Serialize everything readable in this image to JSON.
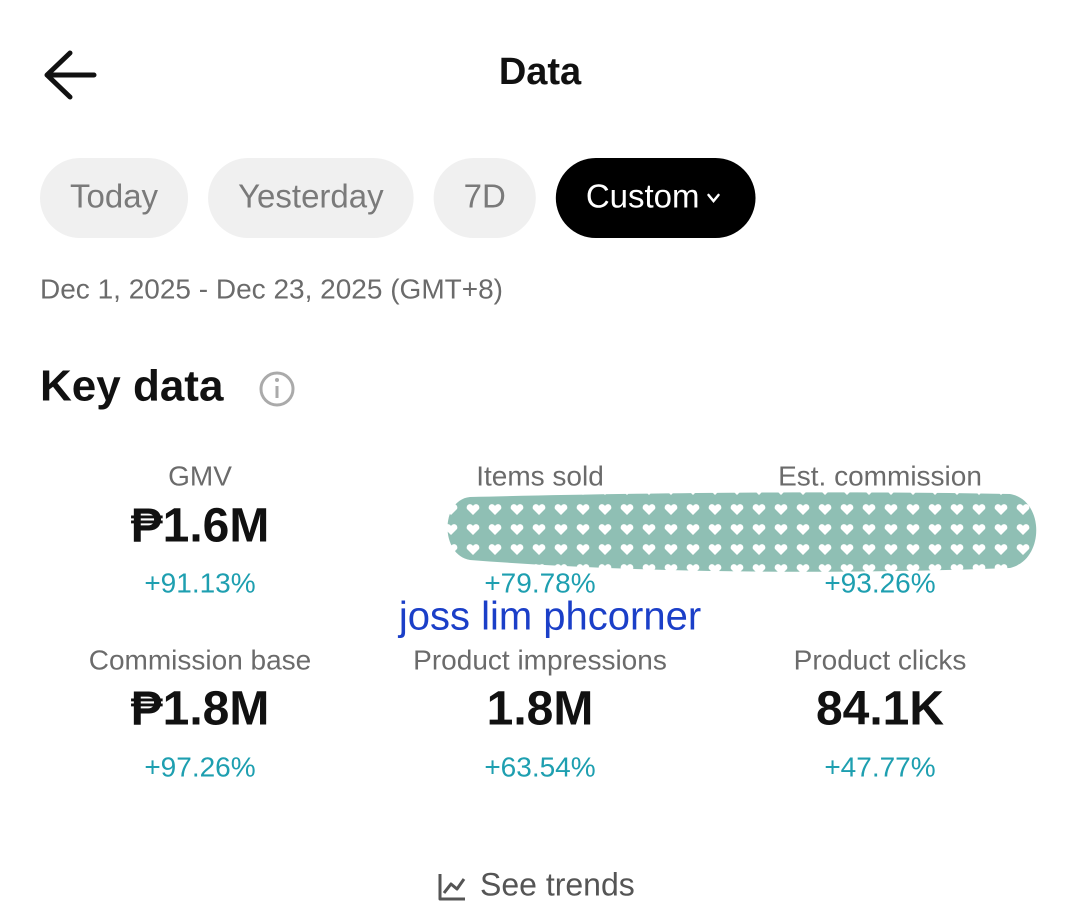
{
  "header": {
    "title": "Data"
  },
  "filters": [
    {
      "label": "Today",
      "selected": false
    },
    {
      "label": "Yesterday",
      "selected": false
    },
    {
      "label": "7D",
      "selected": false
    },
    {
      "label": "Custom",
      "selected": true
    }
  ],
  "date_range": "Dec 1, 2025 - Dec 23, 2025 (GMT+8)",
  "section": {
    "title": "Key data"
  },
  "metrics": [
    {
      "label": "GMV",
      "value": "₱1.6M",
      "change": "+91.13%"
    },
    {
      "label": "Items sold",
      "change": "+79.78%"
    },
    {
      "label": "Est. commission",
      "change": "+93.26%"
    },
    {
      "label": "Commission base",
      "value": "₱1.8M",
      "change": "+97.26%"
    },
    {
      "label": "Product impressions",
      "value": "1.8M",
      "change": "+63.54%"
    },
    {
      "label": "Product clicks",
      "value": "84.1K",
      "change": "+47.77%"
    }
  ],
  "watermark": "joss lim phcorner",
  "footer": {
    "link": "See trends"
  }
}
